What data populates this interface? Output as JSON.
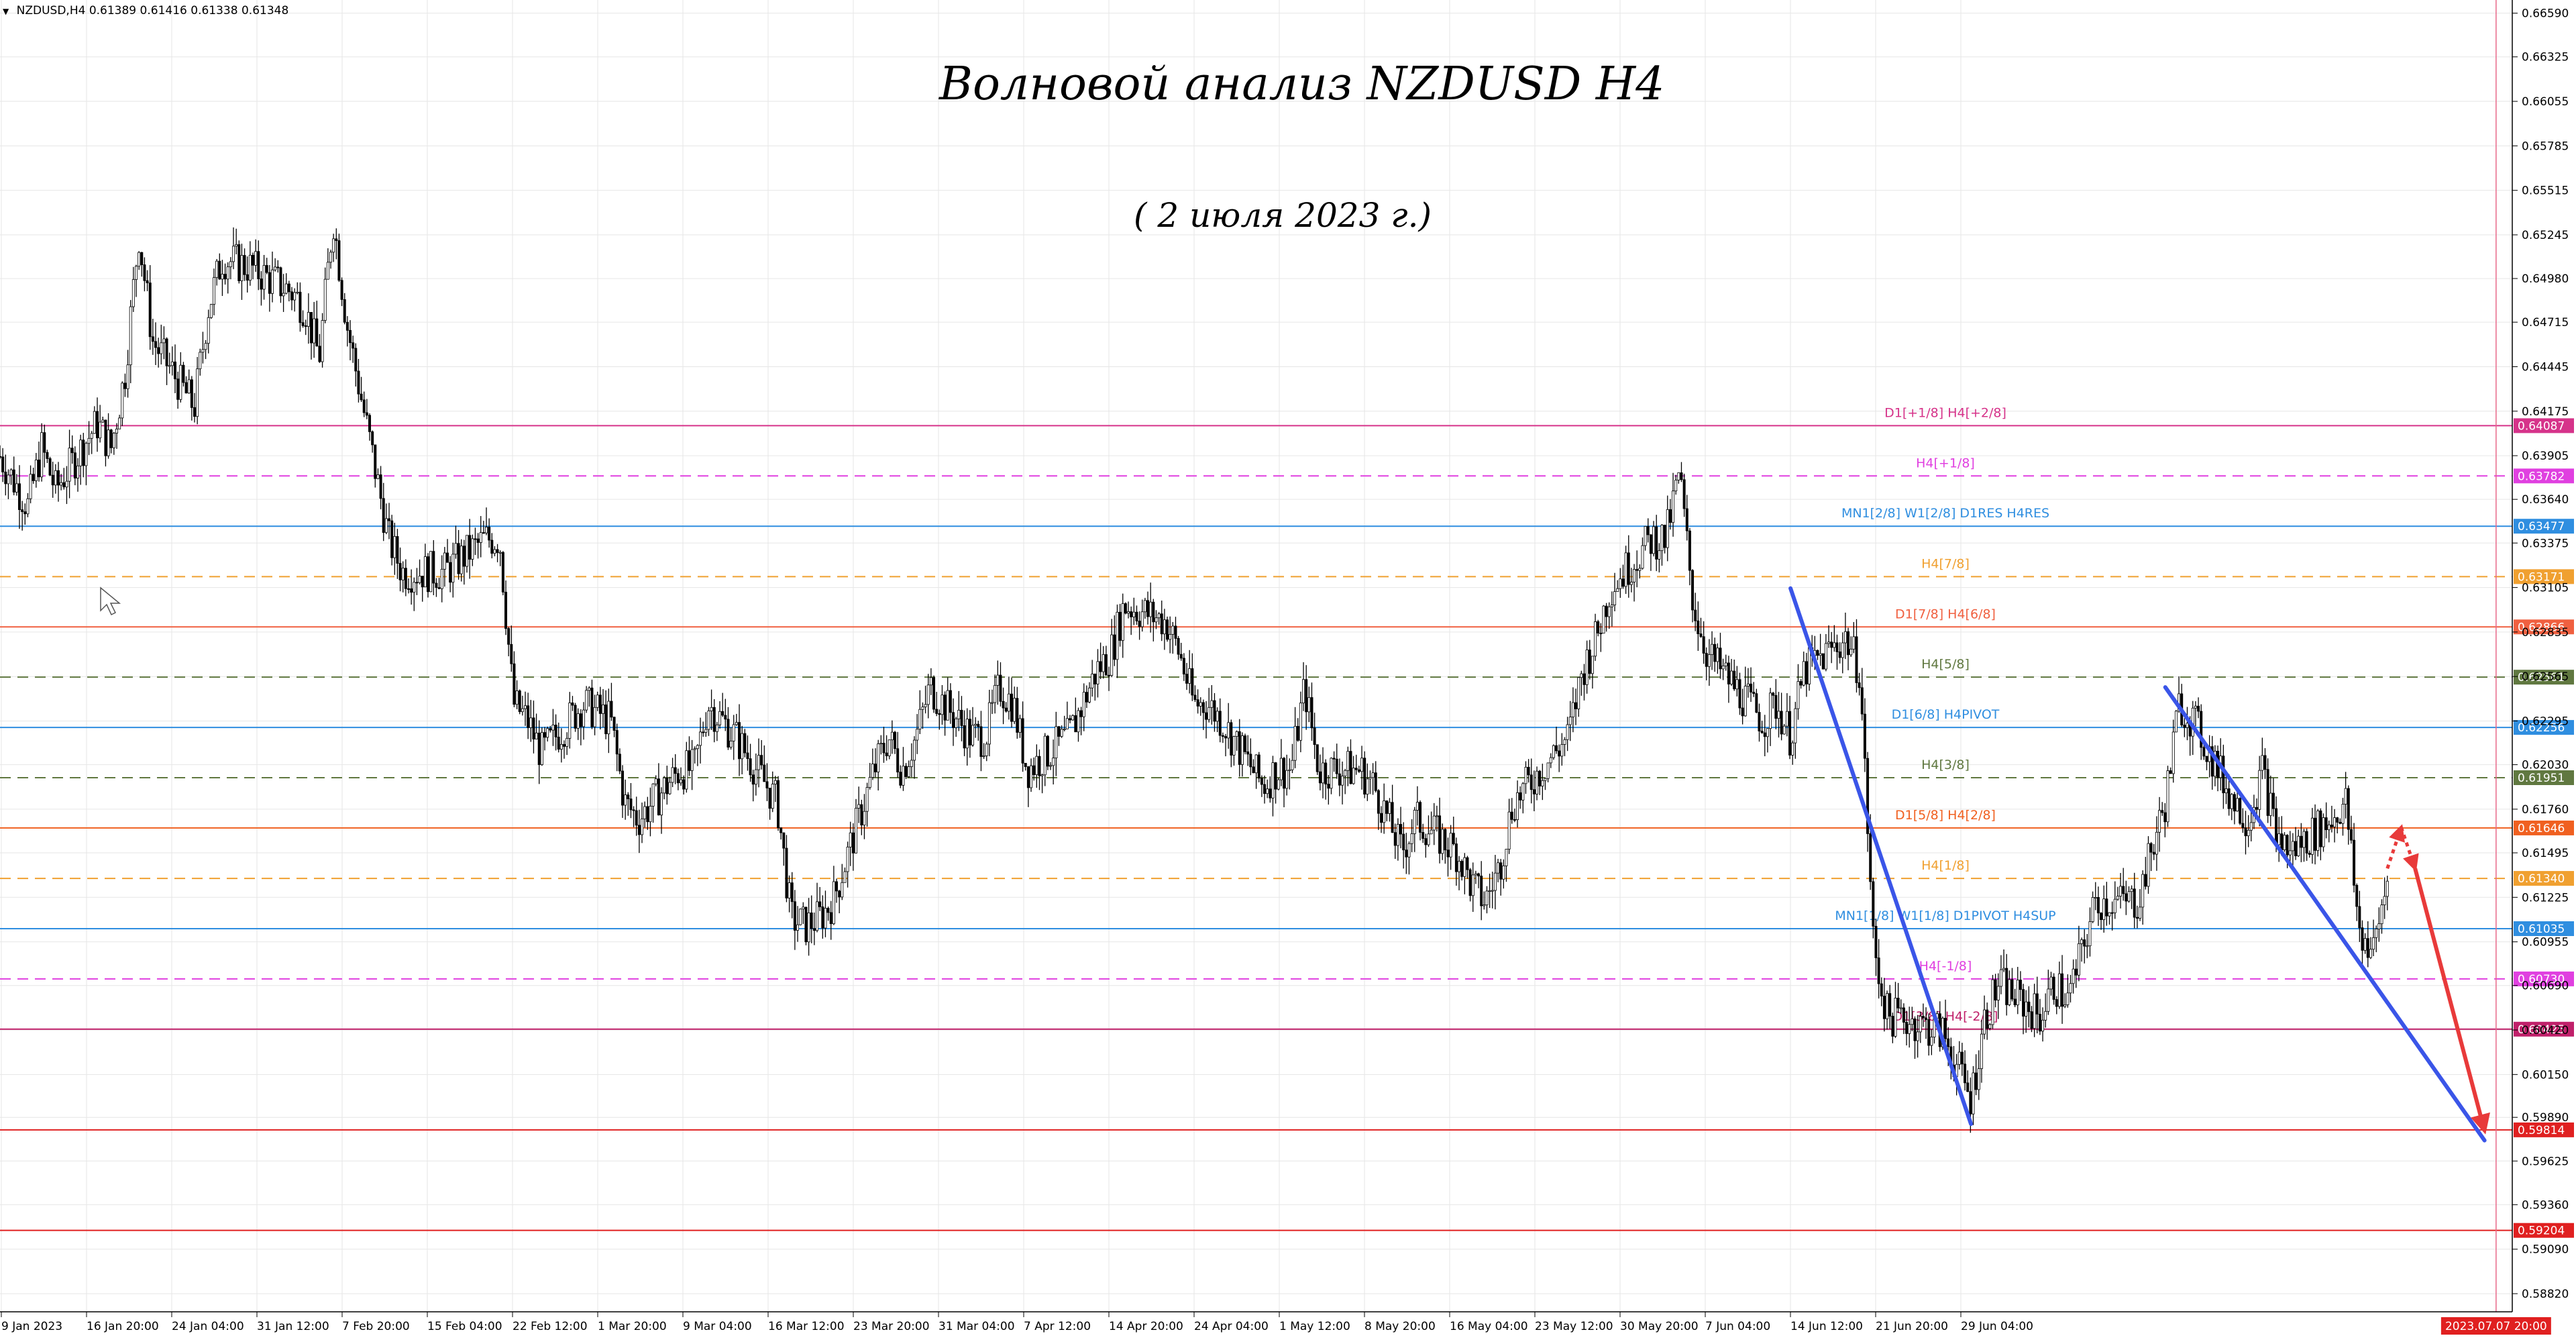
{
  "window": {
    "symbol_header": "NZDUSD,H4",
    "open": "0.61389",
    "high": "0.61416",
    "low": "0.61338",
    "close": "0.61348"
  },
  "annotations": {
    "title": "Волновой анализ NZDUSD H4",
    "subtitle": "( 2 июля 2023 г.)"
  },
  "colors": {
    "background": "#ffffff",
    "grid": "#e6e6e6",
    "candle": "#000000",
    "wave_line": "#3a55e8",
    "forecast_arrow": "#e83a3a",
    "cursor_line": "#e86a8a"
  },
  "price_axis_labels": [
    "0.66590",
    "0.66325",
    "0.66055",
    "0.65785",
    "0.65515",
    "0.65245",
    "0.64980",
    "0.64715",
    "0.64445",
    "0.64175",
    "0.63905",
    "0.63640",
    "0.63375",
    "0.63105",
    "0.62835",
    "0.62565",
    "0.62295",
    "0.62030",
    "0.61760",
    "0.61495",
    "0.61225",
    "0.60955",
    "0.60690",
    "0.60420",
    "0.60150",
    "0.59890",
    "0.59625",
    "0.59360",
    "0.59090",
    "0.58820"
  ],
  "time_axis_labels": [
    "9 Jan 2023",
    "16 Jan 20:00",
    "24 Jan 04:00",
    "31 Jan 12:00",
    "7 Feb 20:00",
    "15 Feb 04:00",
    "22 Feb 12:00",
    "1 Mar 20:00",
    "9 Mar 04:00",
    "16 Mar 12:00",
    "23 Mar 20:00",
    "31 Mar 04:00",
    "7 Apr 12:00",
    "14 Apr 20:00",
    "24 Apr 04:00",
    "1 May 12:00",
    "8 May 20:00",
    "16 May 04:00",
    "23 May 12:00",
    "30 May 20:00",
    "7 Jun 04:00",
    "14 Jun 12:00",
    "21 Jun 20:00",
    "29 Jun 04:00"
  ],
  "cursor_time_label": "2023.07.07 20:00",
  "murrey_levels": [
    {
      "price": 0.64087,
      "label": "D1[+1/8] H4[+2/8]",
      "tag": "0.64087",
      "color": "#d6338a",
      "dash": false
    },
    {
      "price": 0.63782,
      "label": "H4[+1/8]",
      "tag": "0.63782",
      "color": "#e040e0",
      "dash": true
    },
    {
      "price": 0.63477,
      "label": "MN1[2/8] W1[2/8] D1RES H4RES",
      "tag": "0.63477",
      "color": "#2f8ee0",
      "dash": false
    },
    {
      "price": 0.63171,
      "label": "H4[7/8]",
      "tag": "0.63171",
      "color": "#f0a030",
      "dash": true
    },
    {
      "price": 0.62866,
      "label": "D1[7/8] H4[6/8]",
      "tag": "0.62866",
      "color": "#f06040",
      "dash": false
    },
    {
      "price": 0.62561,
      "label": "H4[5/8]",
      "tag": "0.62561",
      "color": "#607840",
      "dash": true
    },
    {
      "price": 0.62256,
      "label": "D1[6/8] H4PIVOT",
      "tag": "0.62256",
      "color": "#2f8ee0",
      "dash": false
    },
    {
      "price": 0.61951,
      "label": "H4[3/8]",
      "tag": "0.61951",
      "color": "#607840",
      "dash": true
    },
    {
      "price": 0.61646,
      "label": "D1[5/8] H4[2/8]",
      "tag": "0.61646",
      "color": "#f06020",
      "dash": false
    },
    {
      "price": 0.6134,
      "label": "H4[1/8]",
      "tag": "0.61340",
      "color": "#f0a030",
      "dash": true
    },
    {
      "price": 0.61035,
      "label": "MN1[1/8] W1[1/8] D1PIVOT H4SUP",
      "tag": "0.61035",
      "color": "#2f8ee0",
      "dash": false
    },
    {
      "price": 0.6073,
      "label": "H4[-1/8]",
      "tag": "0.60730",
      "color": "#e040e0",
      "dash": true
    },
    {
      "price": 0.60425,
      "label": "D1[3/8] H4[-2/8]",
      "tag": "0.60425",
      "color": "#c0206a",
      "dash": false
    },
    {
      "price": 0.59814,
      "label": "",
      "tag": "0.59814",
      "color": "#e02020",
      "dash": false
    },
    {
      "price": 0.59204,
      "label": "",
      "tag": "0.59204",
      "color": "#e02020",
      "dash": false
    }
  ],
  "chart_data": {
    "type": "candlestick",
    "symbol": "NZDUSD",
    "timeframe": "H4",
    "y_range": [
      0.5871,
      0.6667
    ],
    "x_range": [
      "2023-01-09",
      "2023-07-09"
    ],
    "close_path": [
      [
        "2023-01-09",
        0.639
      ],
      [
        "2023-01-11",
        0.636
      ],
      [
        "2023-01-12",
        0.6395
      ],
      [
        "2023-01-13",
        0.637
      ],
      [
        "2023-01-16",
        0.641
      ],
      [
        "2023-01-17",
        0.6395
      ],
      [
        "2023-01-18",
        0.644
      ],
      [
        "2023-01-19",
        0.6525
      ],
      [
        "2023-01-20",
        0.646
      ],
      [
        "2023-01-23",
        0.642
      ],
      [
        "2023-01-24",
        0.648
      ],
      [
        "2023-01-25",
        0.651
      ],
      [
        "2023-01-27",
        0.6505
      ],
      [
        "2023-01-30",
        0.649
      ],
      [
        "2023-01-31",
        0.648
      ],
      [
        "2023-02-01",
        0.645
      ],
      [
        "2023-02-02",
        0.6535
      ],
      [
        "2023-02-03",
        0.647
      ],
      [
        "2023-02-06",
        0.634
      ],
      [
        "2023-02-07",
        0.632
      ],
      [
        "2023-02-08",
        0.632
      ],
      [
        "2023-02-10",
        0.632
      ],
      [
        "2023-02-13",
        0.634
      ],
      [
        "2023-02-14",
        0.634
      ],
      [
        "2023-02-15",
        0.624
      ],
      [
        "2023-02-16",
        0.623
      ],
      [
        "2023-02-17",
        0.621
      ],
      [
        "2023-02-20",
        0.624
      ],
      [
        "2023-02-22",
        0.623
      ],
      [
        "2023-02-23",
        0.618
      ],
      [
        "2023-02-24",
        0.617
      ],
      [
        "2023-02-27",
        0.62
      ],
      [
        "2023-02-28",
        0.62
      ],
      [
        "2023-03-01",
        0.624
      ],
      [
        "2023-03-02",
        0.623
      ],
      [
        "2023-03-03",
        0.622
      ],
      [
        "2023-03-06",
        0.618
      ],
      [
        "2023-03-07",
        0.611
      ],
      [
        "2023-03-08",
        0.6105
      ],
      [
        "2023-03-09",
        0.611
      ],
      [
        "2023-03-10",
        0.612
      ],
      [
        "2023-03-13",
        0.62
      ],
      [
        "2023-03-14",
        0.622
      ],
      [
        "2023-03-15",
        0.62
      ],
      [
        "2023-03-16",
        0.622
      ],
      [
        "2023-03-17",
        0.625
      ],
      [
        "2023-03-20",
        0.622
      ],
      [
        "2023-03-21",
        0.622
      ],
      [
        "2023-03-22",
        0.625
      ],
      [
        "2023-03-23",
        0.624
      ],
      [
        "2023-03-24",
        0.62
      ],
      [
        "2023-03-27",
        0.622
      ],
      [
        "2023-03-28",
        0.624
      ],
      [
        "2023-03-29",
        0.626
      ],
      [
        "2023-03-30",
        0.627
      ],
      [
        "2023-03-31",
        0.63
      ],
      [
        "2023-04-03",
        0.629
      ],
      [
        "2023-04-04",
        0.627
      ],
      [
        "2023-04-05",
        0.624
      ],
      [
        "2023-04-06",
        0.624
      ],
      [
        "2023-04-07",
        0.623
      ],
      [
        "2023-04-10",
        0.619
      ],
      [
        "2023-04-11",
        0.62
      ],
      [
        "2023-04-12",
        0.62
      ],
      [
        "2023-04-13",
        0.625
      ],
      [
        "2023-04-14",
        0.62
      ],
      [
        "2023-04-17",
        0.62
      ],
      [
        "2023-04-18",
        0.619
      ],
      [
        "2023-04-19",
        0.617
      ],
      [
        "2023-04-20",
        0.615
      ],
      [
        "2023-04-21",
        0.617
      ],
      [
        "2023-04-24",
        0.615
      ],
      [
        "2023-04-25",
        0.613
      ],
      [
        "2023-04-26",
        0.612
      ],
      [
        "2023-04-27",
        0.614
      ],
      [
        "2023-04-28",
        0.618
      ],
      [
        "2023-05-01",
        0.621
      ],
      [
        "2023-05-02",
        0.622
      ],
      [
        "2023-05-03",
        0.626
      ],
      [
        "2023-05-04",
        0.628
      ],
      [
        "2023-05-05",
        0.631
      ],
      [
        "2023-05-08",
        0.634
      ],
      [
        "2023-05-09",
        0.634
      ],
      [
        "2023-05-10",
        0.638
      ],
      [
        "2023-05-11",
        0.63
      ],
      [
        "2023-05-12",
        0.627
      ],
      [
        "2023-05-15",
        0.624
      ],
      [
        "2023-05-16",
        0.623
      ],
      [
        "2023-05-17",
        0.624
      ],
      [
        "2023-05-18",
        0.622
      ],
      [
        "2023-05-19",
        0.626
      ],
      [
        "2023-05-22",
        0.628
      ],
      [
        "2023-05-23",
        0.626
      ],
      [
        "2023-05-24",
        0.609
      ],
      [
        "2023-05-25",
        0.605
      ],
      [
        "2023-05-26",
        0.605
      ],
      [
        "2023-05-29",
        0.604
      ],
      [
        "2023-05-30",
        0.602
      ],
      [
        "2023-05-31",
        0.6
      ],
      [
        "2023-06-01",
        0.605
      ],
      [
        "2023-06-02",
        0.607
      ],
      [
        "2023-06-05",
        0.605
      ],
      [
        "2023-06-06",
        0.607
      ],
      [
        "2023-06-07",
        0.606
      ],
      [
        "2023-06-08",
        0.609
      ],
      [
        "2023-06-09",
        0.612
      ],
      [
        "2023-06-12",
        0.612
      ],
      [
        "2023-06-13",
        0.615
      ],
      [
        "2023-06-14",
        0.618
      ],
      [
        "2023-06-15",
        0.624
      ],
      [
        "2023-06-16",
        0.623
      ],
      [
        "2023-06-19",
        0.618
      ],
      [
        "2023-06-20",
        0.617
      ],
      [
        "2023-06-21",
        0.62
      ],
      [
        "2023-06-22",
        0.616
      ],
      [
        "2023-06-23",
        0.615
      ],
      [
        "2023-06-26",
        0.617
      ],
      [
        "2023-06-27",
        0.618
      ],
      [
        "2023-06-28",
        0.61
      ],
      [
        "2023-06-29",
        0.609
      ],
      [
        "2023-06-30",
        0.6134
      ]
    ],
    "wave_lines": [
      {
        "from": [
          "2023-05-18",
          0.631
        ],
        "to": [
          "2023-05-31",
          0.5985
        ]
      },
      {
        "from": [
          "2023-06-14",
          0.625
        ],
        "to": [
          "2023-07-07",
          0.5975
        ]
      }
    ],
    "forecast": {
      "dotted_up": {
        "from": [
          "2023-06-30",
          0.614
        ],
        "to": [
          "2023-07-01",
          0.6165
        ]
      },
      "dotted_down": {
        "from": [
          "2023-07-01",
          0.6165
        ],
        "to": [
          "2023-07-02",
          0.614
        ]
      },
      "main_down": {
        "from": [
          "2023-07-02",
          0.614
        ],
        "to": [
          "2023-07-07",
          0.5981
        ]
      }
    },
    "cursor_time": "2023-07-07 20:00"
  }
}
